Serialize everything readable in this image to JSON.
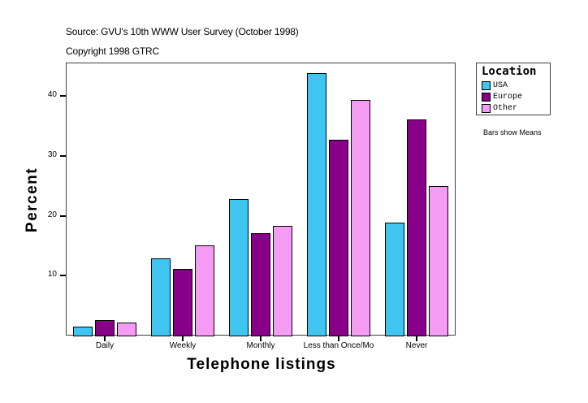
{
  "header": {
    "source": "Source: GVU's 10th WWW User Survey (October 1998)",
    "copyright": "Copyright 1998 GTRC"
  },
  "legend": {
    "title": "Location",
    "items": [
      {
        "label": "USA",
        "color": "#40c4f0"
      },
      {
        "label": "Europe",
        "color": "#880088"
      },
      {
        "label": "Other",
        "color": "#f49cf4"
      }
    ]
  },
  "note": "Bars show Means",
  "chart_data": {
    "type": "bar",
    "title": "Source: GVU's 10th WWW User Survey (October 1998)",
    "subtitle": "Copyright 1998 GTRC",
    "xlabel": "Telephone listings",
    "ylabel": "Percent",
    "categories": [
      "Daily",
      "Weekly",
      "Monthly",
      "Less than Once/Mo",
      "Never"
    ],
    "series": [
      {
        "name": "USA",
        "color": "#40c4f0",
        "values": [
          1.5,
          12.9,
          22.8,
          43.8,
          18.9
        ]
      },
      {
        "name": "Europe",
        "color": "#880088",
        "values": [
          2.6,
          11.1,
          17.1,
          32.7,
          36.1
        ]
      },
      {
        "name": "Other",
        "color": "#f49cf4",
        "values": [
          2.2,
          15.1,
          18.3,
          39.4,
          25.0
        ]
      }
    ],
    "yticks": [
      10,
      20,
      30,
      40
    ],
    "ylim": [
      0,
      45.6
    ],
    "grid": false,
    "legend_position": "right",
    "legend_title": "Location",
    "annotation": "Bars show Means"
  }
}
